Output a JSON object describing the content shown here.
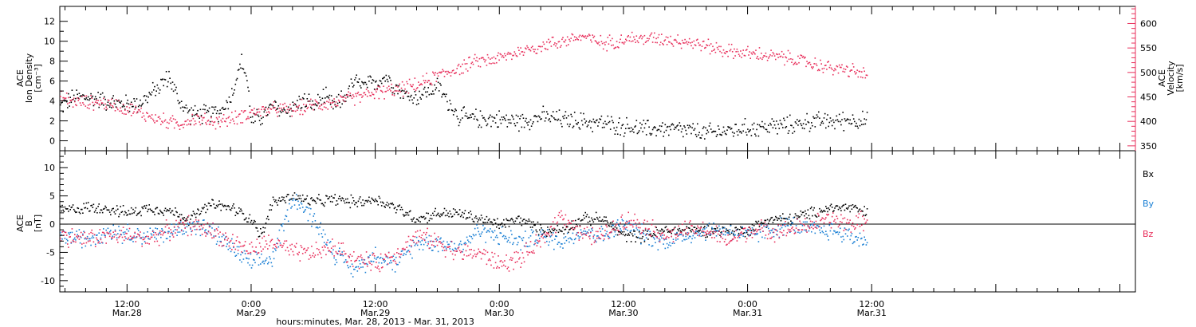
{
  "colors": {
    "black": "#000000",
    "pink": "#e8305c",
    "blue": "#1a7fd4",
    "axis": "#000000"
  },
  "xaxis": {
    "title": "hours:minutes, Mar. 28, 2013 - Mar. 31, 2013",
    "range_hours": [
      5.5,
      109.5
    ],
    "ticks": [
      {
        "hour": 12,
        "time": "12:00",
        "date": "Mar.28"
      },
      {
        "hour": 24,
        "time": "0:00",
        "date": "Mar.29"
      },
      {
        "hour": 36,
        "time": "12:00",
        "date": "Mar.29"
      },
      {
        "hour": 48,
        "time": "0:00",
        "date": "Mar.30"
      },
      {
        "hour": 60,
        "time": "12:00",
        "date": "Mar.30"
      },
      {
        "hour": 72,
        "time": "0:00",
        "date": "Mar.31"
      },
      {
        "hour": 84,
        "time": "12:00",
        "date": "Mar.31"
      }
    ]
  },
  "top_panel": {
    "left_label": [
      "ACE",
      "Ion Density",
      "[cm⁻³]"
    ],
    "right_label": [
      "ACE",
      "Velocity",
      "[km/s]"
    ],
    "left_ticks": [
      "0",
      "2",
      "4",
      "6",
      "8",
      "10",
      "12"
    ],
    "right_ticks": [
      "350",
      "400",
      "450",
      "500",
      "550",
      "600"
    ]
  },
  "bottom_panel": {
    "left_label": [
      "ACE",
      "B",
      "[nT]"
    ],
    "left_ticks": [
      "-10",
      "-5",
      "0",
      "5",
      "10"
    ],
    "legend": [
      {
        "text": "Bx",
        "color": "#000000"
      },
      {
        "text": "By",
        "color": "#1a7fd4"
      },
      {
        "text": "Bz",
        "color": "#e8305c"
      }
    ]
  },
  "chart_data": [
    {
      "type": "scatter",
      "title": "",
      "xlabel": "hours:minutes, Mar. 28, 2013 - Mar. 31, 2013",
      "ylabel": "ACE Ion Density [cm⁻³]",
      "ylabel_right": "ACE Velocity [km/s]",
      "x_units": "hours since Mar.28 0:00",
      "ylim": [
        -1,
        13.5
      ],
      "ylim_right": [
        340,
        635
      ],
      "series": [
        {
          "name": "Ion Density",
          "color": "#000000",
          "axis": "left",
          "x": [
            5.5,
            7,
            9,
            11,
            13,
            14,
            15,
            16,
            17,
            18,
            19,
            20,
            21,
            22,
            23,
            23.5,
            24,
            25,
            26,
            27,
            28,
            29,
            30,
            31,
            32,
            33,
            34,
            35,
            36,
            37,
            38,
            39,
            40,
            41,
            42,
            43,
            44,
            45,
            46,
            48,
            50,
            52,
            54,
            56,
            58,
            60,
            62,
            64,
            66,
            68,
            70,
            72,
            74,
            76,
            78,
            80,
            82,
            83.5
          ],
          "y": [
            3.5,
            4.5,
            4.3,
            3.8,
            3.8,
            4.5,
            5.5,
            6.5,
            4,
            2.8,
            2.7,
            2.8,
            3,
            4.5,
            8,
            6.5,
            2,
            2.5,
            3.5,
            3,
            3.5,
            4.2,
            3.5,
            4.5,
            3.5,
            4.5,
            6,
            5.5,
            6,
            6.5,
            5.5,
            4.5,
            4.5,
            5,
            5.5,
            4,
            2.5,
            2.3,
            2.3,
            2.2,
            2,
            2.5,
            2.2,
            2,
            1.8,
            1.5,
            1.2,
            1.3,
            1.1,
            0.8,
            1.1,
            1.3,
            1.5,
            1.6,
            2,
            2,
            2.2,
            2
          ]
        },
        {
          "name": "Velocity",
          "color": "#e8305c",
          "axis": "right",
          "x": [
            5.5,
            7,
            9,
            11,
            13,
            15,
            16,
            17,
            18,
            19,
            20,
            22,
            24,
            26,
            28,
            30,
            32,
            34,
            36,
            38,
            40,
            42,
            44,
            46,
            48,
            50,
            52,
            54,
            56,
            58,
            60,
            62,
            64,
            66,
            68,
            70,
            72,
            74,
            76,
            78,
            80,
            82,
            83.5
          ],
          "y": [
            450,
            440,
            440,
            435,
            420,
            405,
            400,
            395,
            405,
            405,
            400,
            405,
            420,
            425,
            425,
            435,
            440,
            450,
            460,
            465,
            475,
            495,
            510,
            525,
            530,
            545,
            555,
            565,
            575,
            560,
            570,
            570,
            570,
            565,
            555,
            545,
            540,
            535,
            530,
            520,
            510,
            505,
            495
          ]
        }
      ]
    },
    {
      "type": "scatter",
      "title": "",
      "xlabel": "hours:minutes, Mar. 28, 2013 - Mar. 31, 2013",
      "ylabel": "ACE B [nT]",
      "x_units": "hours since Mar.28 0:00",
      "ylim": [
        -12,
        13
      ],
      "series": [
        {
          "name": "Bx",
          "color": "#000000",
          "x": [
            5.5,
            8,
            10,
            12,
            14,
            16,
            18,
            20,
            22,
            24,
            25,
            26,
            28,
            30,
            32,
            34,
            36,
            38,
            40,
            42,
            44,
            46,
            48,
            50,
            52,
            54,
            56,
            58,
            60,
            62,
            64,
            66,
            68,
            70,
            72,
            74,
            76,
            78,
            80,
            82,
            83.5
          ],
          "y": [
            2.5,
            3,
            3,
            2,
            3,
            2.5,
            1,
            3.5,
            3,
            1,
            -2,
            4,
            5,
            4,
            4.5,
            4,
            4.5,
            3,
            1,
            2,
            2,
            1,
            0,
            1,
            -1,
            -1,
            1,
            1,
            -2,
            -2,
            -1,
            -1,
            -1,
            -1,
            -1,
            1,
            1,
            2,
            3,
            3,
            2
          ]
        },
        {
          "name": "By",
          "color": "#1a7fd4",
          "x": [
            5.5,
            8,
            10,
            12,
            14,
            16,
            18,
            20,
            22,
            24,
            26,
            28,
            30,
            32,
            34,
            36,
            38,
            40,
            42,
            44,
            46,
            48,
            50,
            52,
            54,
            56,
            58,
            60,
            62,
            64,
            66,
            68,
            70,
            72,
            74,
            76,
            78,
            80,
            82,
            83.5
          ],
          "y": [
            -2,
            -2.5,
            -1,
            -1.5,
            -2,
            -1.5,
            0,
            -1,
            -4,
            -7,
            -6,
            5,
            1,
            -5,
            -8,
            -5,
            -7,
            -3,
            -3,
            -4,
            -1,
            -2,
            -3,
            -2,
            -3,
            -1,
            -2,
            0,
            -2,
            -3,
            -2,
            -1,
            -1,
            -2,
            -1,
            0,
            -1,
            -1,
            -2,
            -3
          ]
        },
        {
          "name": "Bz",
          "color": "#e8305c",
          "x": [
            5.5,
            8,
            10,
            12,
            14,
            16,
            18,
            20,
            22,
            24,
            26,
            28,
            30,
            32,
            34,
            36,
            38,
            40,
            42,
            44,
            46,
            48,
            50,
            52,
            54,
            56,
            58,
            60,
            62,
            64,
            66,
            68,
            70,
            72,
            74,
            76,
            78,
            80,
            82,
            83.5
          ],
          "y": [
            -2,
            -2.5,
            -2,
            -2,
            -2.5,
            -1,
            0,
            -1,
            -3,
            -4.5,
            -3,
            -5,
            -5,
            -4,
            -6,
            -7,
            -5,
            -2,
            -3,
            -5,
            -5,
            -7,
            -6,
            -3,
            2,
            -2,
            -2,
            1,
            0,
            -2,
            -1,
            -1,
            -3,
            -1,
            -1,
            -1,
            0,
            1,
            0,
            1
          ]
        }
      ]
    }
  ]
}
